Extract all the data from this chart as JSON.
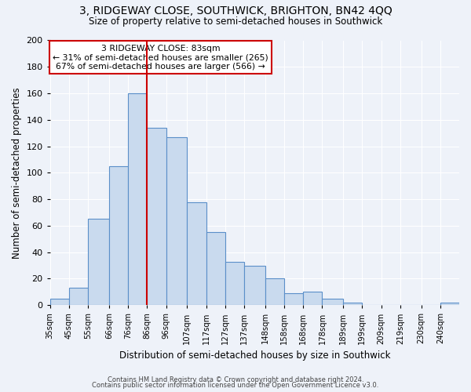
{
  "title": "3, RIDGEWAY CLOSE, SOUTHWICK, BRIGHTON, BN42 4QQ",
  "subtitle": "Size of property relative to semi-detached houses in Southwick",
  "xlabel": "Distribution of semi-detached houses by size in Southwick",
  "ylabel": "Number of semi-detached properties",
  "bar_labels": [
    "35sqm",
    "45sqm",
    "55sqm",
    "66sqm",
    "76sqm",
    "86sqm",
    "96sqm",
    "107sqm",
    "117sqm",
    "127sqm",
    "137sqm",
    "148sqm",
    "158sqm",
    "168sqm",
    "178sqm",
    "189sqm",
    "199sqm",
    "209sqm",
    "219sqm",
    "230sqm",
    "240sqm"
  ],
  "bar_heights": [
    5,
    13,
    65,
    105,
    160,
    134,
    127,
    78,
    55,
    33,
    30,
    20,
    9,
    10,
    5,
    2,
    0,
    0,
    0,
    0,
    2
  ],
  "bar_color": "#c9daee",
  "bar_edge_color": "#5b8fc9",
  "vline_color": "#cc0000",
  "annotation_title": "3 RIDGEWAY CLOSE: 83sqm",
  "annotation_line1": "← 31% of semi-detached houses are smaller (265)",
  "annotation_line2": "67% of semi-detached houses are larger (566) →",
  "annotation_box_edge": "#cc0000",
  "ylim": [
    0,
    200
  ],
  "yticks": [
    0,
    20,
    40,
    60,
    80,
    100,
    120,
    140,
    160,
    180,
    200
  ],
  "bin_edges": [
    35,
    45,
    55,
    66,
    76,
    86,
    96,
    107,
    117,
    127,
    137,
    148,
    158,
    168,
    178,
    189,
    199,
    209,
    219,
    230,
    240,
    250
  ],
  "footer1": "Contains HM Land Registry data © Crown copyright and database right 2024.",
  "footer2": "Contains public sector information licensed under the Open Government Licence v3.0.",
  "bg_color": "#eef2f9",
  "plot_bg_color": "#eef2f9"
}
